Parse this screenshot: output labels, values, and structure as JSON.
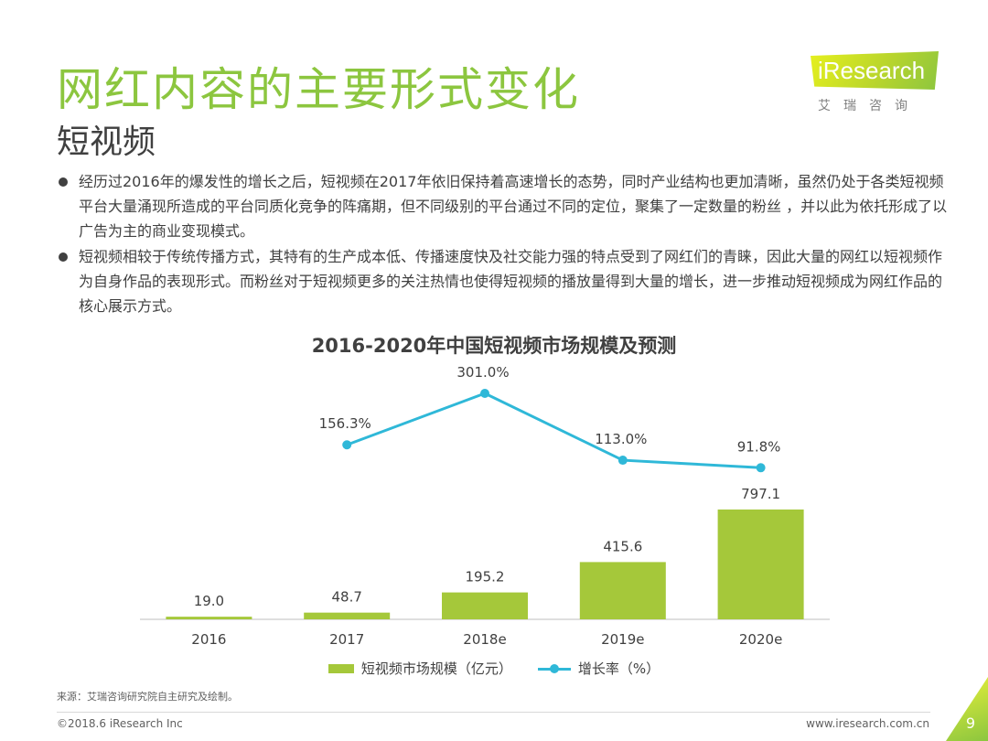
{
  "header": {
    "title": "网红内容的主要形式变化",
    "subtitle": "短视频",
    "logo_text": "iResearch",
    "logo_cn": "艾瑞咨询"
  },
  "bullets": [
    "经历过2016年的爆发性的增长之后，短视频在2017年依旧保持着高速增长的态势，同时产业结构也更加清晰，虽然仍处于各类短视频平台大量涌现所造成的平台同质化竞争的阵痛期，但不同级别的平台通过不同的定位，聚集了一定数量的粉丝 ，并以此为依托形成了以广告为主的商业变现模式。",
    "短视频相较于传统传播方式，其特有的生产成本低、传播速度快及社交能力强的特点受到了网红们的青睐，因此大量的网红以短视频作为自身作品的表现形式。而粉丝对于短视频更多的关注热情也使得短视频的播放量得到大量的增长，进一步推动短视频成为网红作品的核心展示方式。"
  ],
  "chart_data": {
    "type": "bar",
    "title": "2016-2020年中国短视频市场规模及预测",
    "categories": [
      "2016",
      "2017",
      "2018e",
      "2019e",
      "2020e"
    ],
    "series": [
      {
        "name": "短视频市场规模（亿元）",
        "type": "bar",
        "values": [
          19.0,
          48.7,
          195.2,
          415.6,
          797.1
        ],
        "labels": [
          "19.0",
          "48.7",
          "195.2",
          "415.6",
          "797.1"
        ],
        "color": "#a5c83a"
      },
      {
        "name": "增长率（%）",
        "type": "line",
        "values": [
          null,
          156.3,
          301.0,
          113.0,
          91.8
        ],
        "labels": [
          "",
          "156.3%",
          "301.0%",
          "113.0%",
          "91.8%"
        ],
        "color": "#2fb8d8"
      }
    ],
    "legend_position": "bottom",
    "grid": false
  },
  "footer": {
    "source": "来源：艾瑞咨询研究院自主研究及绘制。",
    "copyright": "©2018.6 iResearch Inc",
    "website": "www.iresearch.com.cn",
    "page": "9"
  },
  "colors": {
    "accent": "#8cc63f",
    "bar": "#a5c83a",
    "line": "#2fb8d8",
    "text": "#404040"
  }
}
